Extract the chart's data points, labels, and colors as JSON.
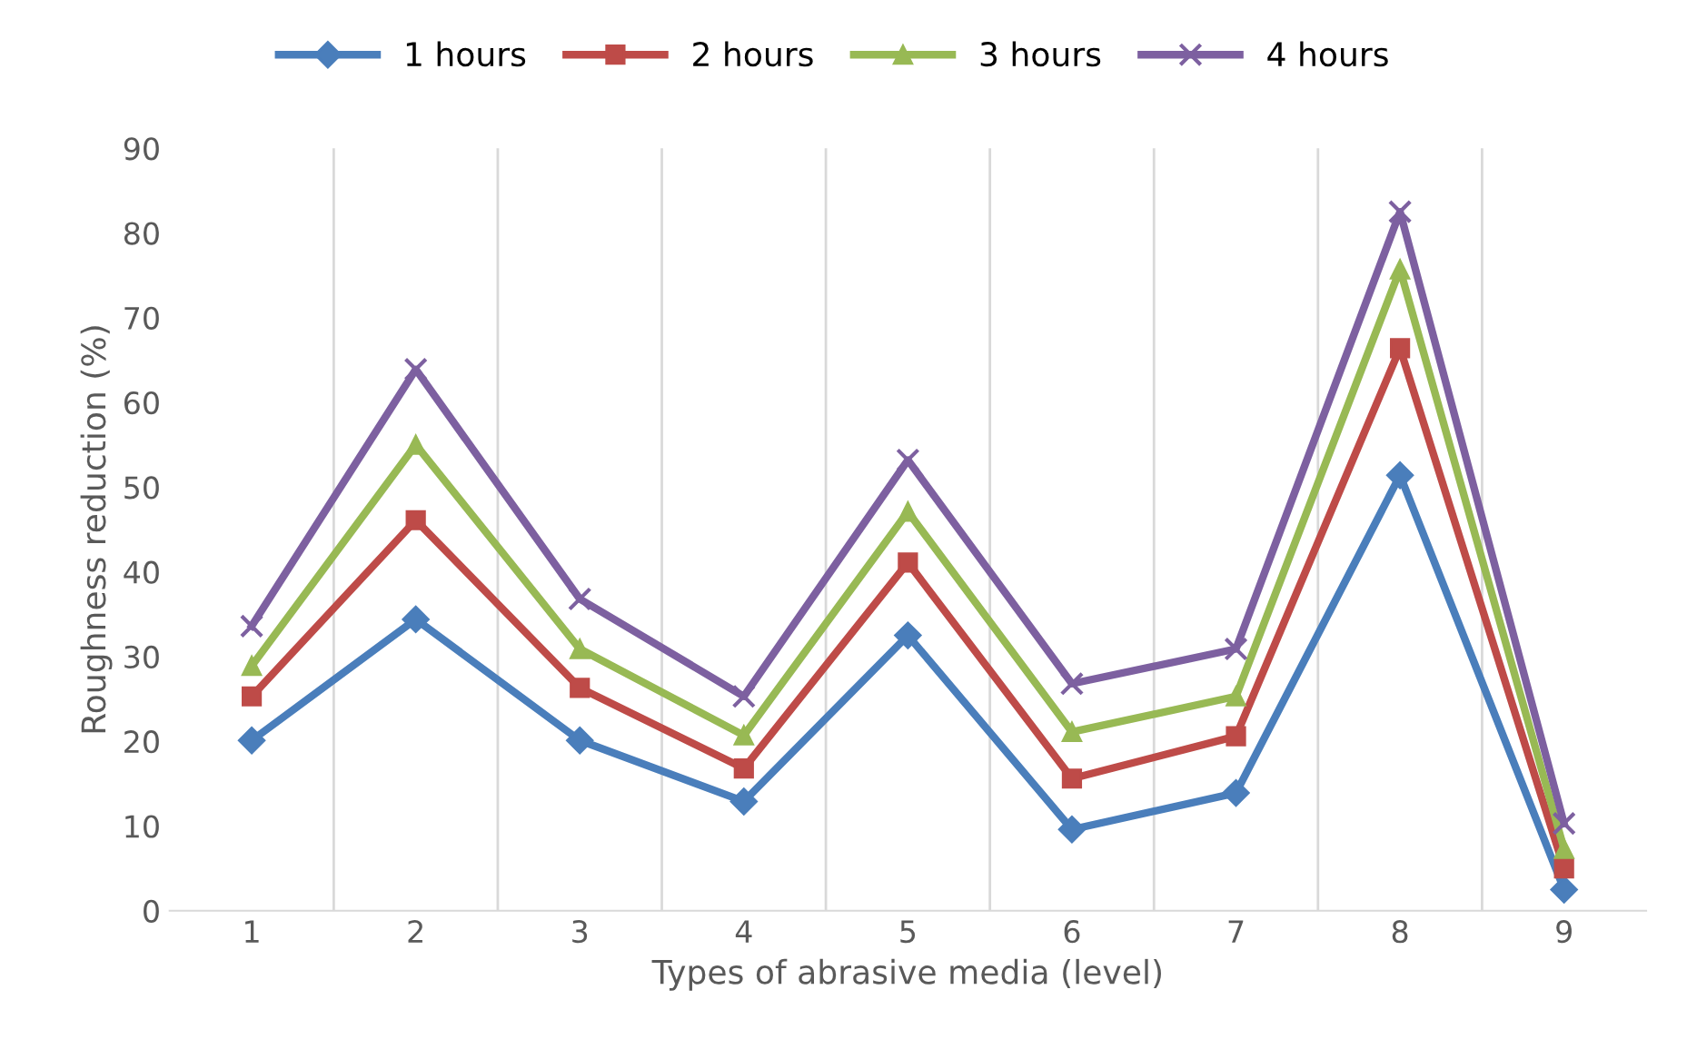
{
  "chart_data": {
    "type": "line",
    "xlabel": "Types of abrasive media (level)",
    "ylabel": "Roughness reduction (%)",
    "categories": [
      "1",
      "2",
      "3",
      "4",
      "5",
      "6",
      "7",
      "8",
      "9"
    ],
    "series": [
      {
        "name": "1 hours",
        "color": "#4a7ebb",
        "marker": "diamond",
        "values": [
          20.1,
          34.4,
          20.1,
          12.9,
          32.5,
          9.6,
          13.9,
          51.4,
          2.5
        ]
      },
      {
        "name": "2 hours",
        "color": "#be4b48",
        "marker": "square",
        "values": [
          25.3,
          46.1,
          26.3,
          16.8,
          41.1,
          15.6,
          20.6,
          66.4,
          5.0
        ]
      },
      {
        "name": "3 hours",
        "color": "#98b954",
        "marker": "triangle",
        "values": [
          28.9,
          55.0,
          30.9,
          20.7,
          47.1,
          21.1,
          25.3,
          75.7,
          7.3
        ]
      },
      {
        "name": "4 hours",
        "color": "#7d60a0",
        "marker": "cross",
        "values": [
          33.6,
          63.9,
          36.8,
          25.3,
          53.2,
          26.8,
          30.9,
          82.5,
          10.3
        ]
      }
    ],
    "ylim": [
      0,
      90
    ],
    "yticks": [
      0,
      10,
      20,
      30,
      40,
      50,
      60,
      70,
      80,
      90
    ],
    "grid": "x",
    "legend": "top"
  }
}
